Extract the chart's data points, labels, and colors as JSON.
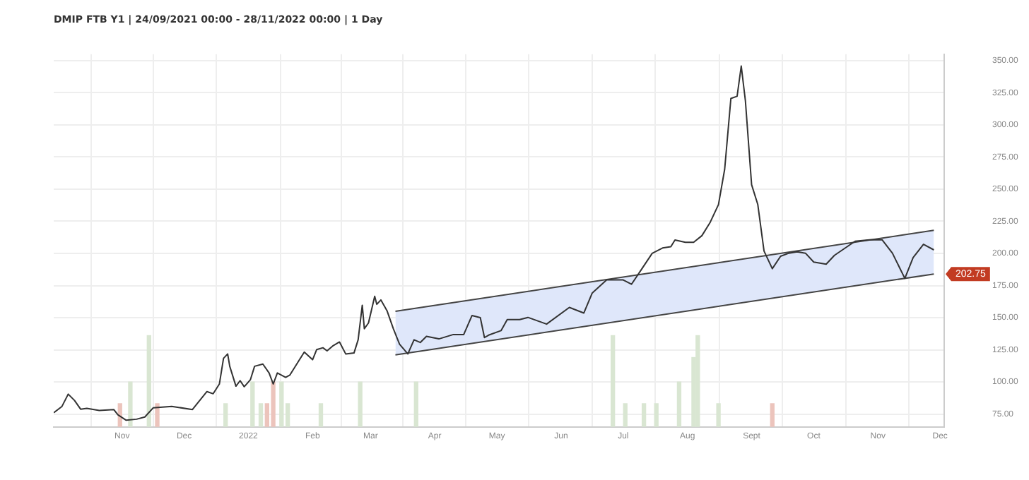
{
  "chart_data": {
    "type": "line",
    "title": "DMIP FTB Y1 | 24/09/2021 00:00 - 28/11/2022 00:00 | 1 Day",
    "xlim": [
      "2021-09-29",
      "2022-12-03"
    ],
    "xticks": [
      {
        "value": "2021-11-01",
        "label": "Nov"
      },
      {
        "value": "2021-12-01",
        "label": "Dec"
      },
      {
        "value": "2022-01-01",
        "label": "2022"
      },
      {
        "value": "2022-02-01",
        "label": "Feb"
      },
      {
        "value": "2022-03-01",
        "label": "Mar"
      },
      {
        "value": "2022-04-01",
        "label": "Apr"
      },
      {
        "value": "2022-05-01",
        "label": "May"
      },
      {
        "value": "2022-06-01",
        "label": "Jun"
      },
      {
        "value": "2022-07-01",
        "label": "Jul"
      },
      {
        "value": "2022-08-01",
        "label": "Aug"
      },
      {
        "value": "2022-09-01",
        "label": "Sept"
      },
      {
        "value": "2022-10-01",
        "label": "Oct"
      },
      {
        "value": "2022-11-01",
        "label": "Nov"
      },
      {
        "value": "2022-12-01",
        "label": "Dec"
      }
    ],
    "ylim": [
      65,
      355
    ],
    "yticks": [
      {
        "value": 75,
        "label": "75.00"
      },
      {
        "value": 100,
        "label": "100.00"
      },
      {
        "value": 125,
        "label": "125.00"
      },
      {
        "value": 150,
        "label": "150.00"
      },
      {
        "value": 175,
        "label": "175.00"
      },
      {
        "value": 200,
        "label": "200.00"
      },
      {
        "value": 225,
        "label": "225.00"
      },
      {
        "value": 250,
        "label": "250.00"
      },
      {
        "value": 275,
        "label": "275.00"
      },
      {
        "value": 300,
        "label": "300.00"
      },
      {
        "value": 325,
        "label": "325.00"
      },
      {
        "value": 350,
        "label": "350.00"
      }
    ],
    "grid": true,
    "legend": false,
    "tick_labels": "xy",
    "annotations": [
      "202.75"
    ],
    "series": [
      {
        "type": "line",
        "color": "#444444",
        "x": [
          "2022-03-13",
          "2022-11-28"
        ],
        "values": [
          121,
          184
        ]
      },
      {
        "type": "line",
        "color": "#444444",
        "x": [
          "2022-03-13",
          "2022-11-28"
        ],
        "values": [
          155,
          218
        ],
        "lower": [
          121,
          184
        ],
        "upper": [
          155,
          218
        ]
      },
      {
        "color": "#333333",
        "x": [
          "2021-09-29",
          "2021-10-03",
          "2021-10-06",
          "2021-10-09",
          "2021-10-12",
          "2021-10-15",
          "2021-10-21",
          "2021-10-28",
          "2021-10-30",
          "2021-11-03",
          "2021-11-08",
          "2021-11-12",
          "2021-11-16",
          "2021-11-25",
          "2021-12-05",
          "2021-12-08",
          "2021-12-12",
          "2021-12-15",
          "2021-12-18",
          "2021-12-20",
          "2021-12-22",
          "2021-12-23",
          "2021-12-26",
          "2021-12-28",
          "2021-12-30",
          "2022-01-02",
          "2022-01-04",
          "2022-01-08",
          "2022-01-11",
          "2022-01-13",
          "2022-01-15",
          "2022-01-19",
          "2022-01-21",
          "2022-01-25",
          "2022-01-28",
          "2022-02-01",
          "2022-02-03",
          "2022-02-06",
          "2022-02-08",
          "2022-02-11",
          "2022-02-14",
          "2022-02-17",
          "2022-02-21",
          "2022-02-23",
          "2022-02-25",
          "2022-02-26",
          "2022-02-28",
          "2022-03-03",
          "2022-03-04",
          "2022-03-06",
          "2022-03-09",
          "2022-03-12",
          "2022-03-15",
          "2022-03-19",
          "2022-03-22",
          "2022-03-25",
          "2022-03-28",
          "2022-04-03",
          "2022-04-10",
          "2022-04-15",
          "2022-04-19",
          "2022-04-23",
          "2022-04-25",
          "2022-04-27",
          "2022-05-03",
          "2022-05-06",
          "2022-05-12",
          "2022-05-16",
          "2022-05-25",
          "2022-06-05",
          "2022-06-12",
          "2022-06-16",
          "2022-06-23",
          "2022-07-01",
          "2022-07-05",
          "2022-07-10",
          "2022-07-15",
          "2022-07-20",
          "2022-07-24",
          "2022-07-26",
          "2022-07-31",
          "2022-08-04",
          "2022-08-08",
          "2022-08-12",
          "2022-08-16",
          "2022-08-19",
          "2022-08-22",
          "2022-08-25",
          "2022-08-27",
          "2022-08-29",
          "2022-09-01",
          "2022-09-04",
          "2022-09-07",
          "2022-09-11",
          "2022-09-15",
          "2022-09-19",
          "2022-09-23",
          "2022-09-27",
          "2022-10-01",
          "2022-10-07",
          "2022-10-11",
          "2022-10-21",
          "2022-10-28",
          "2022-11-03",
          "2022-11-08",
          "2022-11-14",
          "2022-11-18",
          "2022-11-23",
          "2022-11-28"
        ],
        "values": [
          76,
          81,
          90.5,
          85.7,
          78.8,
          79.5,
          77.8,
          78.5,
          74.4,
          70.2,
          71,
          72.7,
          79.8,
          81,
          78.5,
          84.6,
          92.5,
          90.8,
          98.4,
          118.4,
          121.8,
          112.2,
          96.7,
          101,
          96.3,
          101.8,
          112.2,
          113.9,
          107,
          98.4,
          107,
          103.6,
          105.3,
          115.6,
          123.2,
          117.3,
          125.2,
          126.6,
          124.2,
          128.3,
          131.1,
          121.8,
          122.5,
          132.8,
          159.7,
          141.4,
          145.9,
          166.6,
          160.4,
          163.8,
          155.2,
          141.4,
          129.4,
          121.8,
          132.8,
          130.7,
          135.5,
          133.5,
          136.9,
          136.9,
          151.7,
          150,
          134.5,
          136.4,
          139.9,
          148.5,
          148.5,
          150.2,
          145,
          158,
          153.6,
          169.1,
          179.4,
          179.4,
          176,
          188,
          200.1,
          204.2,
          205.2,
          210.4,
          208.7,
          208.7,
          213.8,
          224.2,
          238,
          265.5,
          320.6,
          322.3,
          345.8,
          318.9,
          253.5,
          238,
          201.9,
          188.1,
          197.8,
          200.2,
          201.3,
          200.2,
          193.3,
          191.6,
          198.5,
          209.5,
          210.6,
          210.6,
          200.2,
          180.6,
          196.8,
          207.1,
          202.75
        ]
      },
      {
        "type": "bar",
        "x": [
          "2021-10-31",
          "2021-11-05",
          "2021-11-14",
          "2021-11-18",
          "2021-12-21",
          "2022-01-03",
          "2022-01-07",
          "2022-01-10",
          "2022-01-13",
          "2022-01-17",
          "2022-01-20",
          "2022-02-05",
          "2022-02-24",
          "2022-03-23",
          "2022-06-26",
          "2022-07-02",
          "2022-07-11",
          "2022-07-17",
          "2022-07-28",
          "2022-08-04",
          "2022-08-06",
          "2022-08-16",
          "2022-09-11"
        ],
        "base": [
          65,
          65,
          65,
          65,
          65,
          65,
          65,
          65,
          65,
          65,
          65,
          65,
          65,
          65,
          65,
          65,
          65,
          65,
          65,
          65,
          65,
          65,
          65
        ],
        "values": [
          18,
          35,
          71,
          18,
          18,
          35,
          18,
          18,
          35,
          35,
          18,
          18,
          35,
          35,
          71,
          18,
          18,
          18,
          35,
          54,
          71,
          18,
          18
        ],
        "colors": [
          "#ecc4bc",
          "#d9e6d2",
          "#d9e6d2",
          "#ecc4bc",
          "#d9e6d2",
          "#d9e6d2",
          "#d9e6d2",
          "#ecc4bc",
          "#ecc4bc",
          "#d9e6d2",
          "#d9e6d2",
          "#d9e6d2",
          "#d9e6d2",
          "#d9e6d2",
          "#d9e6d2",
          "#d9e6d2",
          "#d9e6d2",
          "#d9e6d2",
          "#d9e6d2",
          "#d9e6d2",
          "#d9e6d2",
          "#d9e6d2",
          "#ecc4bc"
        ]
      }
    ]
  }
}
